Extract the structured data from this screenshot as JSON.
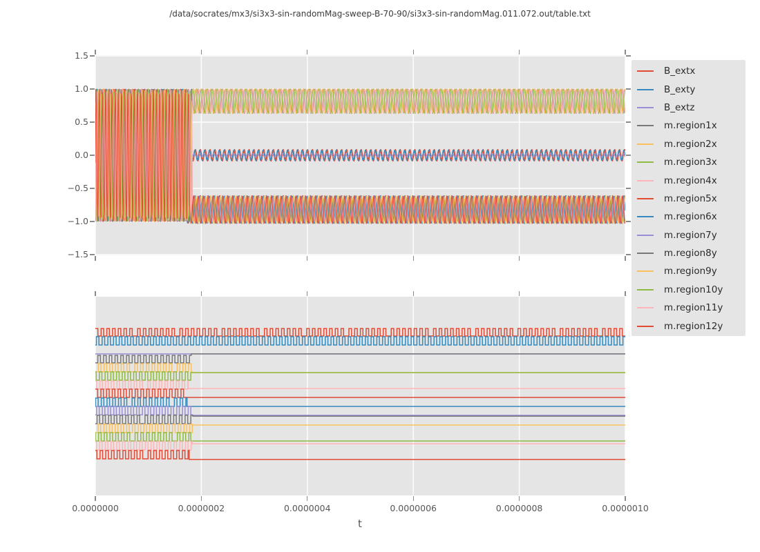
{
  "title": "/data/socrates/mx3/si3x3-sin-randomMag-sweep-B-70-90/si3x3-sin-randomMag.011.072.out/table.txt",
  "chart_data": {
    "type": "line",
    "title": "/data/socrates/mx3/si3x3-sin-randomMag-sweep-B-70-90/si3x3-sin-randomMag.011.072.out/table.txt",
    "xlabel": "t",
    "x_ticks": [
      "0.0000000",
      "0.0000002",
      "0.0000004",
      "0.0000006",
      "0.0000008",
      "0.0000010"
    ],
    "xlim": [
      0,
      1e-06
    ],
    "grid": true,
    "legend_position": "right",
    "style": {
      "axes_bg": "#e5e5e5",
      "grid_color": "#ffffff",
      "tick_color": "#8a8a8a",
      "tick_label_color": "#555555",
      "legend_bg": "#e5e5e5",
      "text_color": "#2b2b2b"
    },
    "top_plot": {
      "y_ticks": [
        "1.5",
        "1.0",
        "0.5",
        "0.0",
        "−0.5",
        "−1.0",
        "−1.5"
      ],
      "ylim": [
        -1.5,
        1.5
      ],
      "initial_oscillation": {
        "min": -1.0,
        "max": 1.0,
        "period_s": 6e-09,
        "until_t": 1.78e-07
      },
      "band_period_s": 9.2e-09,
      "bands": {
        "upper": {
          "min": 0.63,
          "max": 1.0,
          "shape_exp": 3.0
        },
        "middle": {
          "min": -0.09,
          "max": 0.09,
          "shape_exp": 0
        },
        "lower": {
          "min": -1.03,
          "max": -0.61,
          "shape_exp": 1.8
        }
      }
    },
    "bottom_plot": {
      "square_period_s": 1.08e-08,
      "duty": 0.45,
      "levels_note": "high/low/settle are fractions of plot height measured from plot top"
    },
    "series": [
      {
        "name": "B_extx",
        "color": "#E24A33",
        "top_band": "middle",
        "settle_t": 1.78e-07,
        "top_amp_scale": 1.0,
        "bottom": {
          "behavior": "square_forever",
          "high": 0.16,
          "low": 0.198
        }
      },
      {
        "name": "B_exty",
        "color": "#348ABD",
        "top_band": "middle",
        "settle_t": 1.78e-07,
        "top_amp_scale": 0.9,
        "bottom": {
          "behavior": "square_forever",
          "high": 0.201,
          "low": 0.243
        }
      },
      {
        "name": "B_extz",
        "color": "#988ED5",
        "top_band": "middle",
        "settle_t": 1.78e-07,
        "top_amp_scale": 0.25,
        "bottom": {
          "behavior": "flat",
          "flat": 0.288
        }
      },
      {
        "name": "m.region1x",
        "color": "#777777",
        "top_band": "upper",
        "settle_t": 1.81e-07,
        "bottom": {
          "behavior": "square_then_flat",
          "high": 0.295,
          "low": 0.333,
          "settle": 0.288
        }
      },
      {
        "name": "m.region2x",
        "color": "#FBC15E",
        "top_band": "upper",
        "settle_t": 1.83e-07,
        "bottom": {
          "behavior": "square_then_flat",
          "high": 0.337,
          "low": 0.378,
          "settle": 0.382
        }
      },
      {
        "name": "m.region3x",
        "color": "#8EBA42",
        "top_band": "upper",
        "settle_t": 1.8e-07,
        "bottom": {
          "behavior": "square_then_flat",
          "high": 0.378,
          "low": 0.42,
          "settle": 0.382
        }
      },
      {
        "name": "m.region4x",
        "color": "#FFB5B8",
        "top_band": "upper",
        "settle_t": 1.75e-07,
        "bottom": {
          "behavior": "square_then_flat",
          "high": 0.424,
          "low": 0.465,
          "settle": 0.462
        }
      },
      {
        "name": "m.region5x",
        "color": "#E24A33",
        "top_band": "lower",
        "settle_t": 1.72e-07,
        "bottom": {
          "behavior": "square_then_flat",
          "high": 0.465,
          "low": 0.507,
          "settle": 0.507
        }
      },
      {
        "name": "m.region6x",
        "color": "#348ABD",
        "top_band": "lower",
        "settle_t": 1.73e-07,
        "bottom": {
          "behavior": "square_then_flat",
          "high": 0.51,
          "low": 0.552,
          "settle": 0.552
        }
      },
      {
        "name": "m.region7y",
        "color": "#988ED5",
        "top_band": "lower",
        "settle_t": 1.83e-07,
        "bottom": {
          "behavior": "square_then_flat",
          "high": 0.552,
          "low": 0.594,
          "settle": 0.597
        }
      },
      {
        "name": "m.region8y",
        "color": "#777777",
        "top_band": "lower",
        "settle_t": 1.84e-07,
        "bottom": {
          "behavior": "square_then_flat",
          "high": 0.597,
          "low": 0.639,
          "settle": 0.601
        }
      },
      {
        "name": "m.region9y",
        "color": "#FBC15E",
        "top_band": "lower",
        "settle_t": 1.83e-07,
        "bottom": {
          "behavior": "square_then_flat",
          "high": 0.642,
          "low": 0.684,
          "settle": 0.646
        }
      },
      {
        "name": "m.region10y",
        "color": "#8EBA42",
        "top_band": "lower",
        "settle_t": 1.8e-07,
        "bottom": {
          "behavior": "square_then_flat",
          "high": 0.684,
          "low": 0.726,
          "settle": 0.726
        }
      },
      {
        "name": "m.region11y",
        "color": "#FFB5B8",
        "top_band": "lower",
        "settle_t": 1.83e-07,
        "bottom": {
          "behavior": "square_then_flat",
          "high": 0.729,
          "low": 0.771,
          "settle": 0.74
        }
      },
      {
        "name": "m.region12y",
        "color": "#E24A33",
        "top_band": "lower",
        "settle_t": 1.77e-07,
        "bottom": {
          "behavior": "square_then_flat",
          "high": 0.774,
          "low": 0.816,
          "settle": 0.819
        }
      }
    ]
  }
}
